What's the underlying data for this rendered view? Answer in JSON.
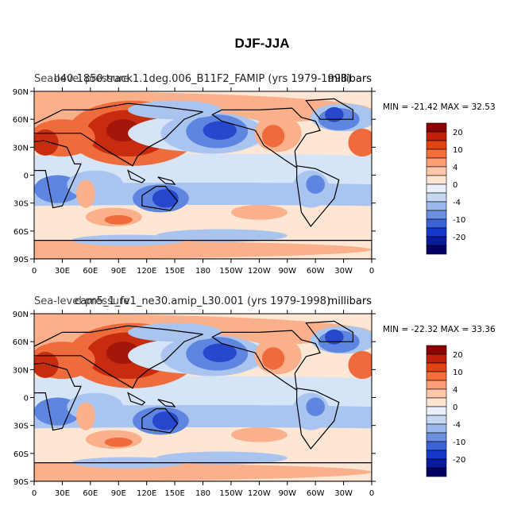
{
  "figure": {
    "title": "DJF-JJA"
  },
  "chart_data": [
    {
      "type": "heatmap",
      "title_left": "Sea-level pressure",
      "title_center": "b40.1850.track1.1deg.006_B11F2_FAMIP (yrs 1979-1998)",
      "units": "millibars",
      "stats": {
        "label": "MIN = -21.42 MAX =  32.53",
        "min": -21.42,
        "max": 32.53
      },
      "x_ticks": [
        "0",
        "30E",
        "60E",
        "90E",
        "120E",
        "150E",
        "180",
        "150W",
        "120W",
        "90W",
        "60W",
        "30W",
        "0"
      ],
      "y_ticks": [
        "90N",
        "60N",
        "30N",
        "0",
        "30S",
        "60S",
        "90S"
      ],
      "xlim": [
        0,
        360
      ],
      "ylim": [
        -90,
        90
      ]
    },
    {
      "type": "heatmap",
      "title_left": "Sea-level pressure",
      "title_center": "cam5_1_fv1_ne30.amip_L30.001 (yrs 1979-1998)",
      "units": "millibars",
      "stats": {
        "label": "MIN = -22.32 MAX =  33.36",
        "min": -22.32,
        "max": 33.36
      },
      "x_ticks": [
        "0",
        "30E",
        "60E",
        "90E",
        "120E",
        "150E",
        "180",
        "150W",
        "120W",
        "90W",
        "60W",
        "30W",
        "0"
      ],
      "y_ticks": [
        "90N",
        "60N",
        "30N",
        "0",
        "30S",
        "60S",
        "90S"
      ],
      "xlim": [
        0,
        360
      ],
      "ylim": [
        -90,
        90
      ]
    }
  ],
  "colorbar": {
    "labels": [
      "20",
      "10",
      "4",
      "0",
      "-4",
      "-10",
      "-20"
    ],
    "colors": [
      "#8b0000",
      "#c2200a",
      "#e34214",
      "#f4703a",
      "#f99e77",
      "#fdc7ab",
      "#fde5d2",
      "#e6effb",
      "#c7d8f3",
      "#9bb9ec",
      "#6d8fe2",
      "#3a65d8",
      "#1638c8",
      "#091a9e",
      "#000066"
    ]
  },
  "field_colors": {
    "neg3": "#2747cc",
    "neg2": "#5e86e0",
    "neg1": "#a9c4ee",
    "neg0": "#d6e4f7",
    "pos0": "#fde7d4",
    "pos1": "#f9b08b",
    "pos2": "#ef6b3b",
    "pos3": "#c82c0e",
    "pos4": "#a3160a",
    "land": "#000000"
  }
}
